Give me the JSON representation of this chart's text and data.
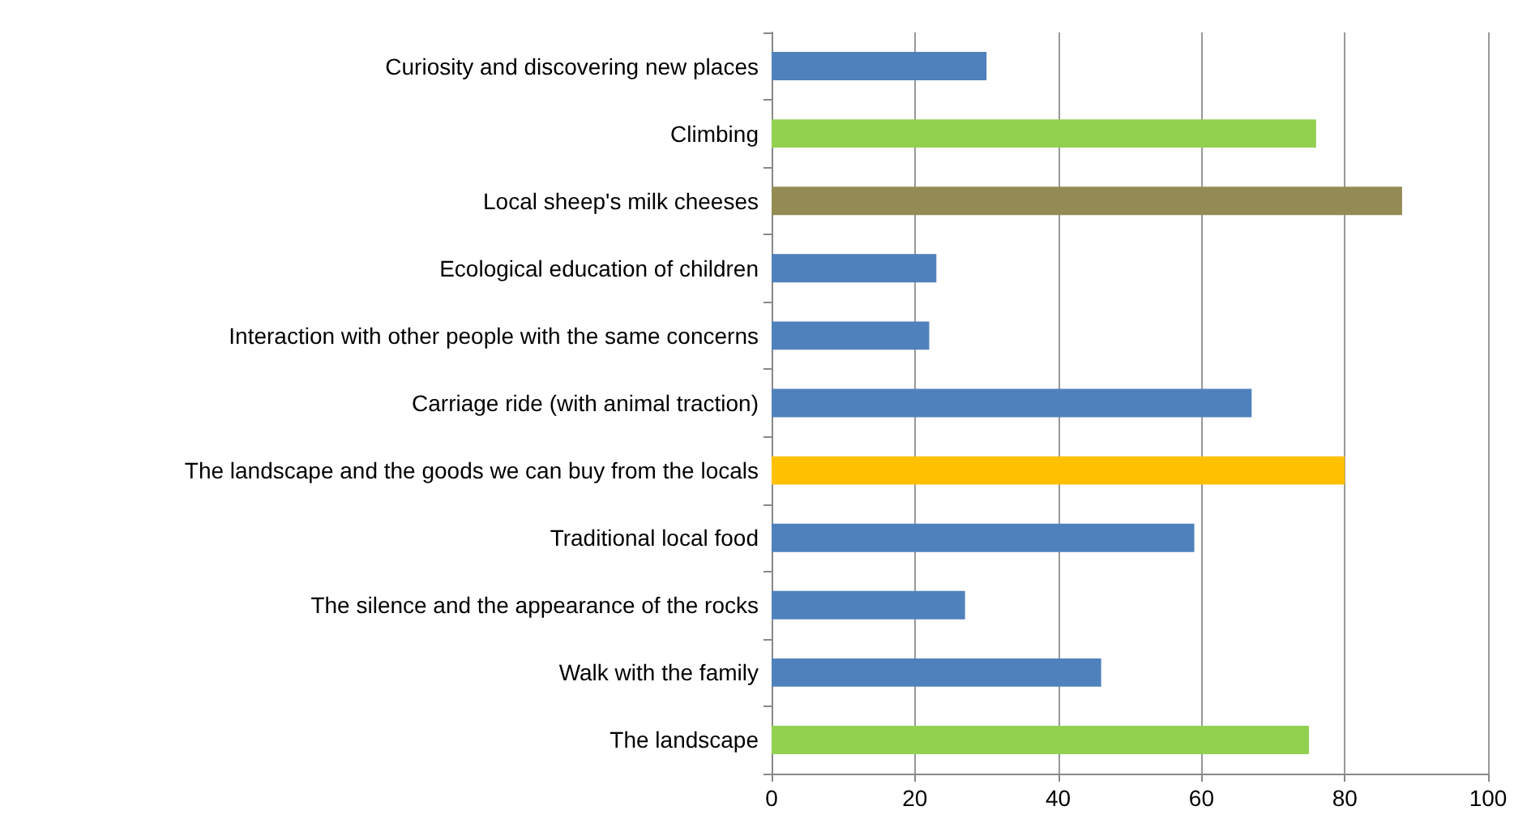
{
  "chart_data": {
    "type": "bar",
    "orientation": "horizontal",
    "categories": [
      "Curiosity and discovering new places",
      "Climbing",
      "Local sheep's milk cheeses",
      "Ecological education of children",
      "Interaction with other people with the same concerns",
      "Carriage ride (with animal traction)",
      "The landscape and the goods we can buy from the locals",
      "Traditional local food",
      "The silence and the appearance of the rocks",
      "Walk with the family",
      "The landscape"
    ],
    "values": [
      30,
      76,
      88,
      23,
      22,
      67,
      80,
      59,
      27,
      46,
      75
    ],
    "colors": [
      "#4f81bd",
      "#92d050",
      "#948a54",
      "#4f81bd",
      "#4f81bd",
      "#4f81bd",
      "#ffc000",
      "#4f81bd",
      "#4f81bd",
      "#4f81bd",
      "#92d050"
    ],
    "xlim": [
      0,
      100
    ],
    "xticks": [
      0,
      20,
      40,
      60,
      80,
      100
    ],
    "grid": "x"
  }
}
